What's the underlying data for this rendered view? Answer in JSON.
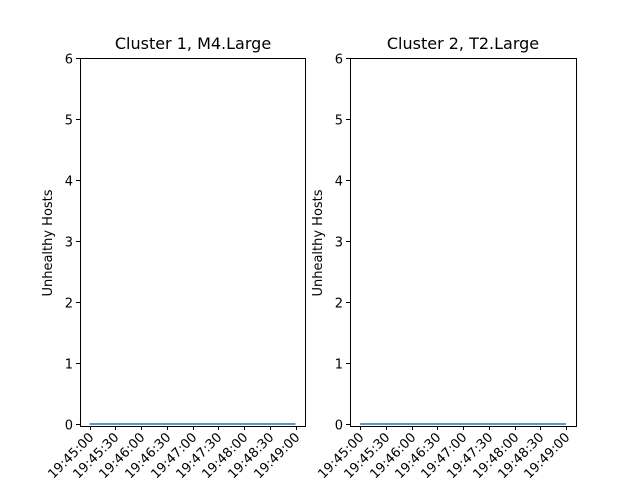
{
  "chart_data": [
    {
      "type": "line",
      "title": "Cluster 1, M4.Large",
      "xlabel": "",
      "ylabel": "Unhealthy Hosts",
      "ylim": [
        0,
        6
      ],
      "y_ticks": [
        "0",
        "1",
        "2",
        "3",
        "4",
        "5",
        "6"
      ],
      "x_ticks": [
        "19:45:00",
        "19:45:30",
        "19:46:00",
        "19:46:30",
        "19:47:00",
        "19:47:30",
        "19:48:00",
        "19:48:30",
        "19:49:00"
      ],
      "x": [
        "19:45:00",
        "19:49:00"
      ],
      "series": [
        {
          "values": [
            0,
            0
          ],
          "color": "#1f77b4"
        }
      ]
    },
    {
      "type": "line",
      "title": "Cluster 2, T2.Large",
      "xlabel": "",
      "ylabel": "Unhealthy Hosts",
      "ylim": [
        0,
        6
      ],
      "y_ticks": [
        "0",
        "1",
        "2",
        "3",
        "4",
        "5",
        "6"
      ],
      "x_ticks": [
        "19:45:00",
        "19:45:30",
        "19:46:00",
        "19:46:30",
        "19:47:00",
        "19:47:30",
        "19:48:00",
        "19:48:30",
        "19:49:00"
      ],
      "x": [
        "19:45:00",
        "19:49:00"
      ],
      "series": [
        {
          "values": [
            0,
            0
          ],
          "color": "#1f77b4"
        }
      ]
    }
  ]
}
